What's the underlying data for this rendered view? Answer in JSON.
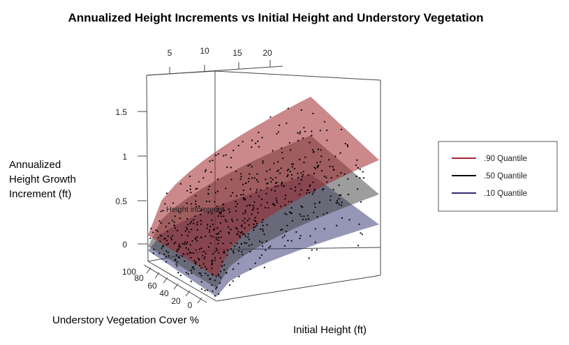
{
  "chart_data": {
    "type": "scatter",
    "subtype": "3d-quantile-regression-surfaces",
    "title": "Annualized Height Increments vs Initial Height and Understory Vegetation",
    "zlabel": [
      "Annualized",
      "Height Growth",
      "Increment (ft)"
    ],
    "xlabel": "Initial Height (ft)",
    "ylabel": "Understory Vegetation Cover %",
    "inner_zlabel": "Height increment",
    "x_ticks": [
      "5",
      "10",
      "15",
      "20"
    ],
    "y_ticks": [
      "100",
      "80",
      "60",
      "40",
      "20",
      "0"
    ],
    "z_ticks": [
      "1.5",
      "1",
      "0.5",
      "0"
    ],
    "xlim": [
      0,
      40
    ],
    "ylim": [
      0,
      100
    ],
    "zlim": [
      -0.1,
      1.75
    ],
    "series": [
      {
        "name": ".90 Quantile",
        "color": "#a0282e",
        "corners": {
          "x0_y100": 0.18,
          "x0_y0": 0.18,
          "x40_y100": 1.5,
          "x40_y0": 1.25
        }
      },
      {
        "name": ".50 Quantile",
        "color": "#000000",
        "corners": {
          "x0_y100": 0.05,
          "x0_y0": 0.05,
          "x40_y100": 1.05,
          "x40_y0": 0.85
        }
      },
      {
        "name": ".10 Quantile",
        "color": "#2e2e6e",
        "corners": {
          "x0_y100": 0.0,
          "x0_y0": -0.05,
          "x40_y100": 0.6,
          "x40_y0": 0.5
        }
      }
    ],
    "legend": {
      "position": "right",
      "entries": [
        ".90 Quantile",
        ".50 Quantile",
        ".10 Quantile"
      ]
    },
    "grid": false
  }
}
